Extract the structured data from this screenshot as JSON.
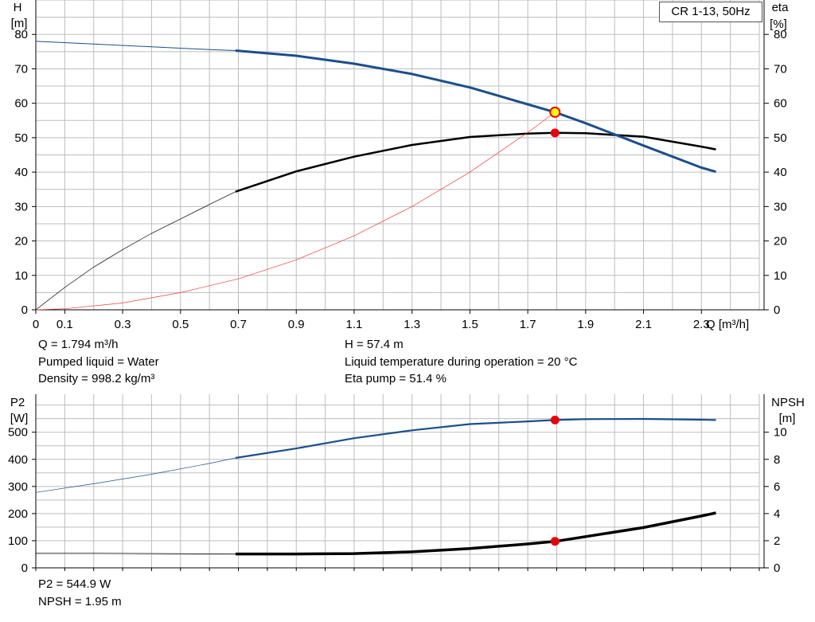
{
  "legend": {
    "label": "CR 1-13, 50Hz"
  },
  "colors": {
    "head": "#1a4f8a",
    "eta": "#000000",
    "eta_pump_total": "#e8403a",
    "p2": "#1a4f8a",
    "npsh": "#000000",
    "grid": "#bdbdbd",
    "marker": "#e8000b",
    "marker_yellow": "#ffff00"
  },
  "info_top": {
    "q": "Q = 1.794 m³/h",
    "liquid": "Pumped liquid = Water",
    "density": "Density = 998.2 kg/m³",
    "h": "H = 57.4 m",
    "temp": "Liquid temperature during operation = 20 °C",
    "eta": "Eta pump = 51.4 %"
  },
  "info_bottom": {
    "p2": "P2 = 544.9 W",
    "npsh": "NPSH = 1.95 m"
  },
  "chart_data": [
    {
      "type": "line",
      "panel": "top",
      "xlabel": "Q [m³/h]",
      "ylabel_left": [
        "H",
        "[m]"
      ],
      "ylabel_right": [
        "eta",
        "[%]"
      ],
      "xlim": [
        0,
        2.5
      ],
      "ylim_left": [
        0,
        90
      ],
      "ylim_right": [
        0,
        90
      ],
      "x_ticks": [
        "0",
        "0.1",
        "0.3",
        "0.5",
        "0.7",
        "0.9",
        "1.1",
        "1.3",
        "1.5",
        "1.7",
        "1.9",
        "2.1",
        "2.3"
      ],
      "x_tick_values": [
        0,
        0.1,
        0.3,
        0.5,
        0.7,
        0.9,
        1.1,
        1.3,
        1.5,
        1.7,
        1.9,
        2.1,
        2.3
      ],
      "y_ticks_left": [
        "0",
        "10",
        "20",
        "30",
        "40",
        "50",
        "60",
        "70",
        "80"
      ],
      "y_ticks_right": [
        "0",
        "10",
        "20",
        "30",
        "40",
        "50",
        "60",
        "70",
        "80"
      ],
      "grid": true,
      "operating_point": {
        "q": 1.794,
        "h": 57.4,
        "eta": 51.4
      },
      "series": [
        {
          "key": "head",
          "axis": "left",
          "thin_until": 0.69,
          "x": [
            0,
            0.2,
            0.4,
            0.6,
            0.69,
            0.9,
            1.1,
            1.3,
            1.5,
            1.7,
            1.794,
            1.9,
            2.1,
            2.3,
            2.35
          ],
          "y": [
            78,
            77.2,
            76.4,
            75.6,
            75.3,
            73.8,
            71.5,
            68.5,
            64.6,
            59.7,
            57.4,
            54.2,
            47.7,
            41.3,
            40.1
          ]
        },
        {
          "key": "eta",
          "axis": "right",
          "thin_until": 0.69,
          "x": [
            0,
            0.1,
            0.2,
            0.3,
            0.4,
            0.5,
            0.6,
            0.69,
            0.9,
            1.1,
            1.3,
            1.5,
            1.7,
            1.794,
            1.9,
            2.1,
            2.3,
            2.35
          ],
          "y": [
            0,
            6.5,
            12.4,
            17.5,
            22.2,
            26.4,
            30.6,
            34.3,
            40.2,
            44.5,
            47.9,
            50.2,
            51.2,
            51.4,
            51.3,
            50.3,
            47.4,
            46.6
          ]
        },
        {
          "key": "eta_pump_total",
          "axis": "right",
          "thin_until": 1.794,
          "x": [
            0,
            0.1,
            0.3,
            0.5,
            0.7,
            0.9,
            1.1,
            1.3,
            1.5,
            1.7,
            1.794
          ],
          "y": [
            0,
            0.3,
            2,
            5,
            9,
            14.5,
            21.5,
            30,
            40,
            51.5,
            57.4
          ]
        }
      ]
    },
    {
      "type": "line",
      "panel": "bottom",
      "ylabel_left": [
        "P2",
        "[W]"
      ],
      "ylabel_right": [
        "NPSH",
        "[m]"
      ],
      "xlim": [
        0,
        2.5
      ],
      "ylim_left": [
        0,
        640
      ],
      "ylim_right": [
        0,
        12.8
      ],
      "y_ticks_left": [
        "0",
        "100",
        "200",
        "300",
        "400",
        "500"
      ],
      "y_tick_values_left": [
        0,
        100,
        200,
        300,
        400,
        500
      ],
      "y_ticks_right": [
        "0",
        "2",
        "4",
        "6",
        "8",
        "10"
      ],
      "y_tick_values_right": [
        0,
        2,
        4,
        6,
        8,
        10
      ],
      "grid": true,
      "operating_point": {
        "q": 1.794,
        "p2": 544.9,
        "npsh": 1.95
      },
      "series": [
        {
          "key": "p2",
          "axis": "left",
          "thin_until": 0.69,
          "x": [
            0,
            0.2,
            0.4,
            0.6,
            0.69,
            0.9,
            1.1,
            1.3,
            1.5,
            1.7,
            1.794,
            1.9,
            2.1,
            2.3,
            2.35
          ],
          "y": [
            278,
            310,
            345,
            385,
            405,
            440,
            478,
            507,
            530,
            540,
            544.9,
            548,
            549,
            546,
            545
          ]
        },
        {
          "key": "npsh",
          "axis": "right",
          "thin_until": 0.69,
          "x": [
            0,
            0.3,
            0.69,
            0.9,
            1.1,
            1.3,
            1.5,
            1.7,
            1.794,
            1.9,
            2.1,
            2.3,
            2.35
          ],
          "y": [
            1.1,
            1.07,
            1.02,
            1.02,
            1.05,
            1.18,
            1.42,
            1.76,
            1.95,
            2.3,
            2.97,
            3.82,
            4.05
          ]
        }
      ]
    }
  ]
}
